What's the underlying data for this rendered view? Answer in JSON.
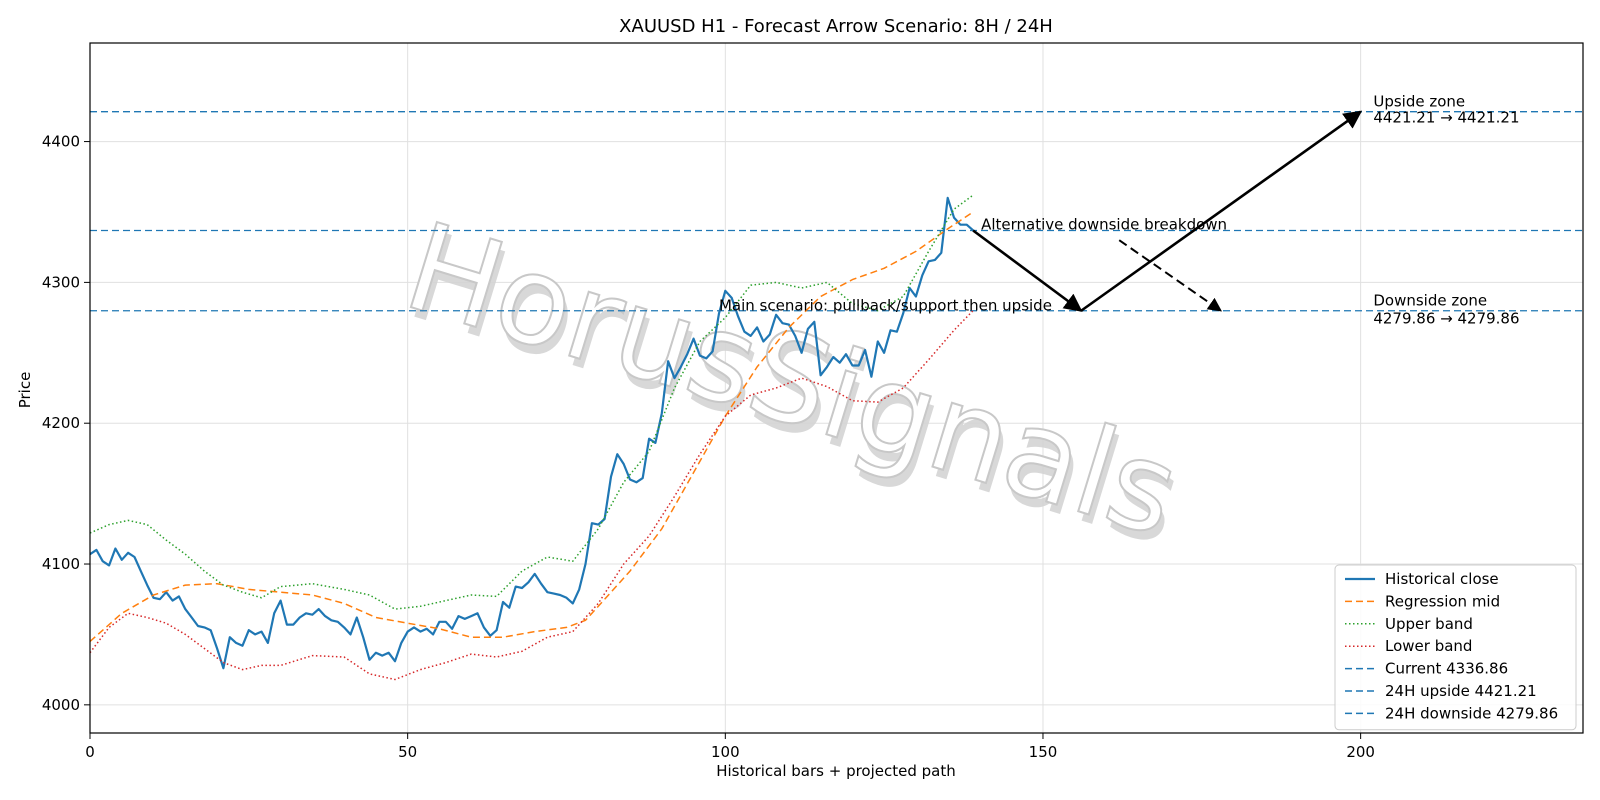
{
  "chart_data": {
    "type": "line",
    "title": "XAUUSD H1 - Forecast Arrow Scenario: 8H / 24H",
    "xlabel": "Historical bars + projected path",
    "ylabel": "Price",
    "xlim": [
      0,
      235
    ],
    "ylim": [
      3980,
      4470
    ],
    "x_ticks": [
      0,
      50,
      100,
      150,
      200
    ],
    "y_ticks": [
      4000,
      4100,
      4200,
      4300,
      4400
    ],
    "grid": true,
    "legend_position": "lower right",
    "series": [
      {
        "name": "Historical close",
        "color": "#1f77b4",
        "style": "solid",
        "x": [
          0,
          1,
          2,
          3,
          4,
          5,
          6,
          7,
          8,
          9,
          10,
          11,
          12,
          13,
          14,
          15,
          16,
          17,
          18,
          19,
          20,
          21,
          22,
          23,
          24,
          25,
          26,
          27,
          28,
          29,
          30,
          31,
          32,
          33,
          34,
          35,
          36,
          37,
          38,
          39,
          40,
          41,
          42,
          43,
          44,
          45,
          46,
          47,
          48,
          49,
          50,
          51,
          52,
          53,
          54,
          55,
          56,
          57,
          58,
          59,
          60,
          61,
          62,
          63,
          64,
          65,
          66,
          67,
          68,
          69,
          70,
          71,
          72,
          73,
          74,
          75,
          76,
          77,
          78,
          79,
          80,
          81,
          82,
          83,
          84,
          85,
          86,
          87,
          88,
          89,
          90,
          91,
          92,
          93,
          94,
          95,
          96,
          97,
          98,
          99,
          100,
          101,
          102,
          103,
          104,
          105,
          106,
          107,
          108,
          109,
          110,
          111,
          112,
          113,
          114,
          115,
          116,
          117,
          118,
          119,
          120,
          121,
          122,
          123,
          124,
          125,
          126,
          127,
          128,
          129,
          130,
          131,
          132,
          133,
          134,
          135,
          136,
          137,
          138,
          139
        ],
        "values": [
          4107,
          4110,
          4102,
          4099,
          4111,
          4103,
          4108,
          4105,
          4095,
          4085,
          4076,
          4075,
          4080,
          4074,
          4077,
          4068,
          4062,
          4056,
          4055,
          4053,
          4040,
          4026,
          4048,
          4044,
          4042,
          4053,
          4050,
          4052,
          4044,
          4065,
          4074,
          4057,
          4057,
          4062,
          4065,
          4064,
          4068,
          4063,
          4060,
          4059,
          4055,
          4050,
          4062,
          4048,
          4032,
          4037,
          4035,
          4037,
          4031,
          4044,
          4052,
          4055,
          4052,
          4054,
          4050,
          4059,
          4059,
          4054,
          4063,
          4061,
          4063,
          4065,
          4055,
          4049,
          4053,
          4073,
          4069,
          4084,
          4083,
          4087,
          4093,
          4086,
          4080,
          4079,
          4078,
          4076,
          4072,
          4082,
          4100,
          4129,
          4128,
          4132,
          4162,
          4178,
          4171,
          4160,
          4158,
          4161,
          4189,
          4186,
          4207,
          4244,
          4232,
          4240,
          4249,
          4260,
          4248,
          4246,
          4251,
          4278,
          4294,
          4289,
          4276,
          4265,
          4262,
          4268,
          4258,
          4263,
          4277,
          4271,
          4270,
          4262,
          4250,
          4267,
          4272,
          4234,
          4240,
          4247,
          4243,
          4249,
          4241,
          4241,
          4252,
          4233,
          4258,
          4250,
          4266,
          4265,
          4278,
          4296,
          4290,
          4305,
          4315,
          4316,
          4321,
          4360,
          4346,
          4341,
          4341,
          4337
        ]
      },
      {
        "name": "Regression mid",
        "color": "#ff7f0e",
        "style": "dashed",
        "x": [
          0,
          5,
          10,
          15,
          20,
          25,
          30,
          35,
          40,
          45,
          50,
          55,
          60,
          65,
          70,
          75,
          78,
          80,
          85,
          90,
          95,
          100,
          105,
          110,
          115,
          120,
          125,
          130,
          135,
          139
        ],
        "values": [
          4045,
          4065,
          4078,
          4085,
          4086,
          4082,
          4080,
          4078,
          4072,
          4062,
          4058,
          4054,
          4048,
          4048,
          4052,
          4055,
          4060,
          4070,
          4095,
          4125,
          4165,
          4205,
          4240,
          4268,
          4290,
          4302,
          4310,
          4322,
          4338,
          4350
        ]
      },
      {
        "name": "Upper band",
        "color": "#2ca02c",
        "style": "dotted",
        "x": [
          0,
          3,
          6,
          9,
          12,
          15,
          18,
          21,
          24,
          27,
          30,
          35,
          40,
          44,
          48,
          52,
          56,
          60,
          64,
          68,
          72,
          76,
          80,
          84,
          88,
          92,
          96,
          100,
          104,
          108,
          112,
          116,
          120,
          124,
          128,
          132,
          136,
          139
        ],
        "values": [
          4122,
          4128,
          4131,
          4128,
          4117,
          4107,
          4095,
          4085,
          4080,
          4076,
          4084,
          4086,
          4082,
          4078,
          4068,
          4070,
          4074,
          4078,
          4077,
          4095,
          4105,
          4102,
          4125,
          4158,
          4180,
          4225,
          4258,
          4275,
          4298,
          4300,
          4296,
          4300,
          4285,
          4280,
          4290,
          4322,
          4352,
          4362
        ]
      },
      {
        "name": "Lower band",
        "color": "#d62728",
        "style": "dotted",
        "x": [
          0,
          3,
          6,
          9,
          12,
          15,
          18,
          21,
          24,
          27,
          30,
          35,
          40,
          44,
          48,
          52,
          56,
          60,
          64,
          68,
          72,
          76,
          80,
          84,
          88,
          92,
          96,
          100,
          104,
          108,
          112,
          116,
          120,
          124,
          128,
          132,
          136,
          139
        ],
        "values": [
          4037,
          4055,
          4065,
          4062,
          4058,
          4050,
          4040,
          4030,
          4025,
          4028,
          4028,
          4035,
          4034,
          4022,
          4018,
          4025,
          4030,
          4036,
          4034,
          4038,
          4048,
          4052,
          4072,
          4100,
          4120,
          4148,
          4178,
          4205,
          4220,
          4225,
          4232,
          4226,
          4216,
          4215,
          4225,
          4245,
          4266,
          4280
        ]
      }
    ],
    "hlines": [
      {
        "name": "Current 4336.86",
        "value": 4336.86,
        "color": "#1f77b4",
        "style": "dashed"
      },
      {
        "name": "24H upside 4421.21",
        "value": 4421.21,
        "color": "#1f77b4",
        "style": "dashed"
      },
      {
        "name": "24H downside 4279.86",
        "value": 4279.86,
        "color": "#1f77b4",
        "style": "dashed"
      }
    ],
    "arrows": [
      {
        "from": [
          139,
          4336.86
        ],
        "to": [
          156,
          4279.86
        ],
        "style": "solid",
        "label": "main-leg-1"
      },
      {
        "from": [
          156,
          4279.86
        ],
        "to": [
          200,
          4421.21
        ],
        "style": "solid",
        "label": "main-leg-2"
      },
      {
        "from": [
          162,
          4330
        ],
        "to": [
          178,
          4279.86
        ],
        "style": "dashed",
        "label": "alternative"
      }
    ],
    "annotations": [
      {
        "text": "Alternative downside breakdown",
        "x": 139,
        "y": 4336.86
      },
      {
        "text": "Main scenario: pullback/support then upside",
        "x": 99,
        "y": 4279.86
      },
      {
        "text": "Upside zone",
        "x": 202,
        "y": 4421.21
      },
      {
        "text": "4421.21 → 4421.21",
        "x": 202,
        "y": 4421.21
      },
      {
        "text": "Downside zone",
        "x": 202,
        "y": 4279.86
      },
      {
        "text": "4279.86 → 4279.86",
        "x": 202,
        "y": 4279.86
      }
    ],
    "watermark": "HorusSignals"
  }
}
